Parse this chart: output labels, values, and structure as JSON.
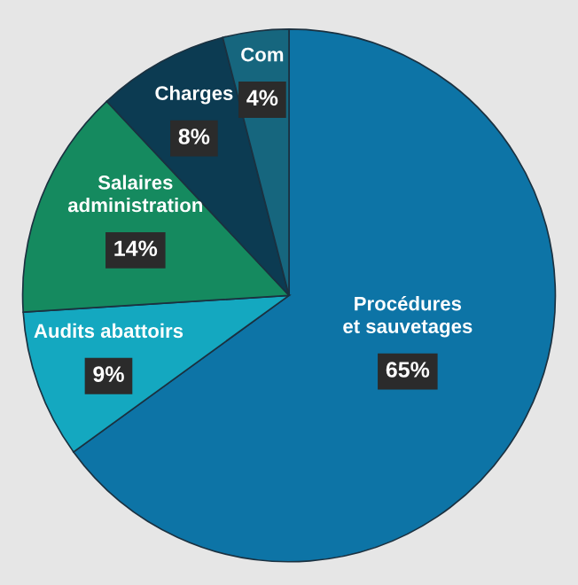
{
  "chart_data": {
    "type": "pie",
    "categories": [
      "Procédures\net sauvetages",
      "Audits abattoirs",
      "Salaires\nadministration",
      "Charges",
      "Com"
    ],
    "values": [
      65,
      9,
      14,
      8,
      4
    ],
    "colors": [
      "#0d74a6",
      "#14a8c0",
      "#158a5f",
      "#0c3b52",
      "#16667e"
    ],
    "value_labels": [
      "65%",
      "9%",
      "14%",
      "8%",
      "4%"
    ]
  }
}
